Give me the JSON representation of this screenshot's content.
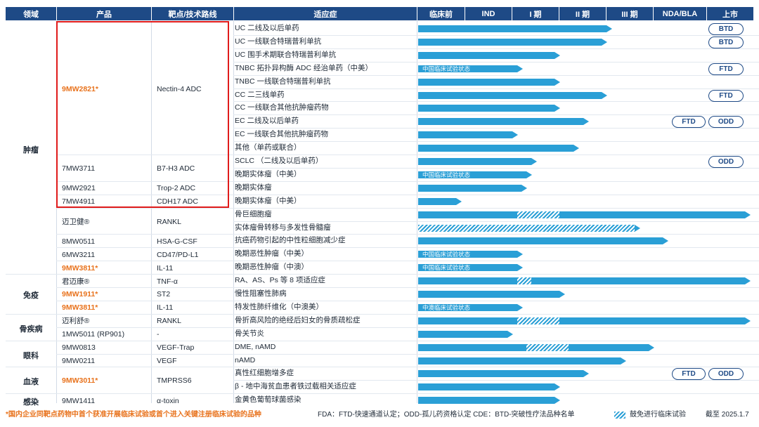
{
  "header": {
    "domain": "领域",
    "product": "产品",
    "target": "靶点/技术路线",
    "indication": "适应症",
    "phases": [
      "临床前",
      "IND",
      "I 期",
      "II 期",
      "III 期",
      "NDA/BLA",
      "上市"
    ]
  },
  "domains": [
    "肿瘤",
    "免疫",
    "骨疾病",
    "眼科",
    "血液",
    "感染"
  ],
  "colors": {
    "header_bg": "#1e4a86",
    "bar": "#2a9fd6",
    "highlight": "#e8721c",
    "box": "#e01b1b"
  },
  "chart_data": {
    "type": "table",
    "title": "",
    "stage_scale": [
      "临床前",
      "IND",
      "I 期",
      "II 期",
      "III 期",
      "NDA/BLA",
      "上市"
    ],
    "products": [
      {
        "name": "9MW2821*",
        "target": "Nectin-4 ADC",
        "highlight": true,
        "domain": "肿瘤"
      },
      {
        "name": "7MW3711",
        "target": "B7-H3 ADC",
        "highlight": false,
        "domain": "肿瘤"
      },
      {
        "name": "9MW2921",
        "target": "Trop-2 ADC",
        "highlight": false,
        "domain": "肿瘤"
      },
      {
        "name": "7MW4911",
        "target": "CDH17 ADC",
        "highlight": false,
        "domain": "肿瘤"
      },
      {
        "name": "迈卫健®",
        "target": "RANKL",
        "highlight": false,
        "domain": "肿瘤"
      },
      {
        "name": "8MW0511",
        "target": "HSA-G-CSF",
        "highlight": false,
        "domain": "肿瘤"
      },
      {
        "name": "6MW3211",
        "target": "CD47/PD-L1",
        "highlight": false,
        "domain": "肿瘤"
      },
      {
        "name": "9MW3811*",
        "target": "IL-11",
        "highlight": true,
        "domain": "肿瘤"
      },
      {
        "name": "君迈康®",
        "target": "TNF-α",
        "highlight": false,
        "domain": "免疫"
      },
      {
        "name": "9MW1911*",
        "target": "ST2",
        "highlight": true,
        "domain": "免疫"
      },
      {
        "name": "9MW3811*",
        "target": "IL-11",
        "highlight": true,
        "domain": "免疫"
      },
      {
        "name": "迈利舒®",
        "target": "RANKL",
        "highlight": false,
        "domain": "骨疾病"
      },
      {
        "name": "1MW5011 (RP901)",
        "target": "-",
        "highlight": false,
        "domain": "骨疾病"
      },
      {
        "name": "9MW0813",
        "target": "VEGF-Trap",
        "highlight": false,
        "domain": "眼科"
      },
      {
        "name": "9MW0211",
        "target": "VEGF",
        "highlight": false,
        "domain": "眼科"
      },
      {
        "name": "9MW3011*",
        "target": "TMPRSS6",
        "highlight": true,
        "domain": "血液"
      },
      {
        "name": "9MW1411",
        "target": "α-toxin",
        "highlight": false,
        "domain": "感染"
      }
    ],
    "rows": [
      {
        "indication": "UC 二线及以后单药",
        "stage": 4.0,
        "badge": "BTD"
      },
      {
        "indication": "UC 一线联合特瑞普利单抗",
        "stage": 3.9,
        "badge": "BTD"
      },
      {
        "indication": "UC 围手术期联合特瑞普利单抗",
        "stage": 2.9
      },
      {
        "indication": "TNBC 拓扑异构酶 ADC 经治单药（中美）",
        "stage": 2.1,
        "note": "中国临床试验状态",
        "badge": "FTD"
      },
      {
        "indication": "TNBC 一线联合特瑞普利单抗",
        "stage": 2.9
      },
      {
        "indication": "CC 二三线单药",
        "stage": 3.9,
        "badge": "FTD"
      },
      {
        "indication": "CC 一线联合其他抗肿瘤药物",
        "stage": 2.9
      },
      {
        "indication": "EC 二线及以后单药",
        "stage": 3.5,
        "badge": "FTD",
        "badge2": "ODD"
      },
      {
        "indication": "EC 一线联合其他抗肿瘤药物",
        "stage": 2.0
      },
      {
        "indication": "其他（单药或联合）",
        "stage": 3.3
      },
      {
        "indication": "SCLC （二线及以后单药）",
        "stage": 2.4,
        "badge": "ODD"
      },
      {
        "indication": "晚期实体瘤（中美）",
        "stage": 2.3,
        "note": "中国临床试验状态"
      },
      {
        "indication": "晚期实体瘤",
        "stage": 2.2
      },
      {
        "indication": "晚期实体瘤（中美）",
        "stage": 0.8
      },
      {
        "indication": "骨巨细胞瘤",
        "stage": 7.0,
        "hatch": [
          2.1,
          3.0
        ]
      },
      {
        "indication": "实体瘤骨转移与多发性骨髓瘤",
        "stage": 4.6,
        "hatch": [
          0.0,
          4.6
        ]
      },
      {
        "indication": "抗癌药物引起的中性粒细胞减少症",
        "stage": 5.2
      },
      {
        "indication": "晚期恶性肿瘤（中美）",
        "stage": 2.1,
        "note": "中国临床试验状态"
      },
      {
        "indication": "晚期恶性肿瘤（中澳）",
        "stage": 2.1,
        "note": "中国临床试验状态"
      },
      {
        "indication": "RA、AS、Ps 等 8 项适应症",
        "stage": 7.0,
        "hatch": [
          2.1,
          2.4
        ]
      },
      {
        "indication": "慢性阻塞性肺病",
        "stage": 3.0
      },
      {
        "indication": "特发性肺纤维化（中澳美）",
        "stage": 2.1,
        "note": "中澳临床试验状态"
      },
      {
        "indication": "骨折高风险的绝经后妇女的骨质疏松症",
        "stage": 7.0,
        "hatch": [
          2.1,
          3.0
        ]
      },
      {
        "indication": "骨关节炎",
        "stage": 1.9
      },
      {
        "indication": "DME, nAMD",
        "stage": 4.9,
        "hatch": [
          2.3,
          3.2
        ]
      },
      {
        "indication": "nAMD",
        "stage": 4.3
      },
      {
        "indication": "真性红细胞增多症",
        "stage": 3.5,
        "badge": "FTD",
        "badge2": "ODD"
      },
      {
        "indication": "β - 地中海贫血患者铁过载相关适应症",
        "stage": 2.9
      },
      {
        "indication": "金黄色葡萄球菌感染",
        "stage": 2.9
      }
    ],
    "legend": [
      "鼓免进行临床试验"
    ]
  },
  "footer": {
    "note": "*国内企业同靶点药物中首个获准开展临床试验或首个进入关键注册临床试验的品种",
    "abbrev": "FDA：FTD-快速通道认定；ODD-孤儿药资格认定   CDE：BTD-突破性疗法品种名单",
    "legend": "鼓免进行临床试验",
    "date": "截至 2025.1.7"
  }
}
